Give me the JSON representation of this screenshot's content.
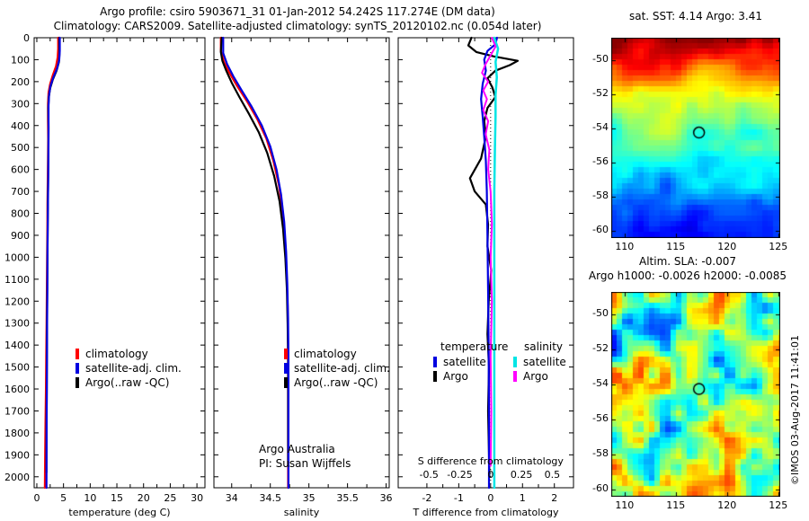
{
  "header": {
    "line1": "Argo profile: csiro 5903671_31 01-Jan-2012 54.242S 117.274E (DM data)",
    "line2": "Climatology: CARS2009. Satellite-adjusted climatology: synTS_20120102.nc (0.054d later)"
  },
  "watermark": "©IMOS 03-Aug-2017 11:41:01",
  "chart_data": [
    {
      "id": "temperature",
      "type": "line",
      "xlabel": "temperature (deg C)",
      "xlim": [
        -0.5,
        31.5
      ],
      "xticks": [
        0,
        5,
        10,
        15,
        20,
        25,
        30
      ],
      "ylim": [
        0,
        2050
      ],
      "yticks": [
        0,
        100,
        200,
        300,
        400,
        500,
        600,
        700,
        800,
        900,
        1000,
        1100,
        1200,
        1300,
        1400,
        1500,
        1600,
        1700,
        1800,
        1900,
        2000
      ],
      "legend": {
        "items": [
          {
            "label": "climatology",
            "color": "#ff0000"
          },
          {
            "label": "satellite-adj. clim.",
            "color": "#0000e0"
          },
          {
            "label": "Argo(..raw -QC)",
            "color": "#000000"
          }
        ]
      },
      "series": [
        {
          "name": "climatology",
          "color": "#ff0000",
          "width": 2.2,
          "points": [
            [
              4.0,
              0
            ],
            [
              4.0,
              50
            ],
            [
              3.9,
              90
            ],
            [
              3.6,
              130
            ],
            [
              3.0,
              170
            ],
            [
              2.5,
              210
            ],
            [
              2.2,
              250
            ],
            [
              2.1,
              300
            ],
            [
              2.1,
              380
            ],
            [
              2.12,
              460
            ],
            [
              2.1,
              550
            ],
            [
              2.05,
              650
            ],
            [
              2.0,
              760
            ],
            [
              1.97,
              880
            ],
            [
              1.93,
              1000
            ],
            [
              1.88,
              1150
            ],
            [
              1.82,
              1300
            ],
            [
              1.76,
              1450
            ],
            [
              1.7,
              1600
            ],
            [
              1.63,
              1750
            ],
            [
              1.56,
              1900
            ],
            [
              1.5,
              2050
            ]
          ]
        },
        {
          "name": "Argo(..raw -QC)",
          "color": "#000000",
          "width": 2.2,
          "points": [
            [
              4.2,
              0
            ],
            [
              4.25,
              70
            ],
            [
              4.15,
              110
            ],
            [
              3.7,
              150
            ],
            [
              3.0,
              190
            ],
            [
              2.5,
              230
            ],
            [
              2.25,
              270
            ],
            [
              2.15,
              320
            ],
            [
              2.2,
              410
            ],
            [
              2.17,
              510
            ],
            [
              2.13,
              630
            ],
            [
              2.08,
              750
            ],
            [
              2.03,
              880
            ],
            [
              1.99,
              1010
            ],
            [
              1.95,
              1160
            ],
            [
              1.91,
              1310
            ],
            [
              1.88,
              1460
            ],
            [
              1.85,
              1610
            ],
            [
              1.83,
              1760
            ],
            [
              1.81,
              1910
            ],
            [
              1.8,
              1980
            ]
          ]
        },
        {
          "name": "satellite-adj. clim.",
          "color": "#0000e0",
          "width": 2.2,
          "points": [
            [
              4.3,
              0
            ],
            [
              4.3,
              60
            ],
            [
              4.2,
              100
            ],
            [
              3.8,
              140
            ],
            [
              3.1,
              180
            ],
            [
              2.55,
              220
            ],
            [
              2.3,
              260
            ],
            [
              2.2,
              310
            ],
            [
              2.2,
              400
            ],
            [
              2.18,
              500
            ],
            [
              2.15,
              620
            ],
            [
              2.1,
              740
            ],
            [
              2.05,
              870
            ],
            [
              2.0,
              1000
            ],
            [
              1.97,
              1150
            ],
            [
              1.93,
              1300
            ],
            [
              1.9,
              1450
            ],
            [
              1.87,
              1600
            ],
            [
              1.84,
              1750
            ],
            [
              1.82,
              1900
            ],
            [
              1.8,
              2050
            ]
          ]
        }
      ]
    },
    {
      "id": "salinity",
      "type": "line",
      "xlabel": "salinity",
      "xlim": [
        33.77,
        36.04
      ],
      "xticks": [
        34,
        34.5,
        35,
        35.5,
        36
      ],
      "ylim": [
        0,
        2050
      ],
      "yticks": [
        0,
        100,
        200,
        300,
        400,
        500,
        600,
        700,
        800,
        900,
        1000,
        1100,
        1200,
        1300,
        1400,
        1500,
        1600,
        1700,
        1800,
        1900,
        2000
      ],
      "annotations": [
        "Argo Australia",
        "PI: Susan Wijffels"
      ],
      "legend": {
        "items": [
          {
            "label": "climatology",
            "color": "#ff0000"
          },
          {
            "label": "satellite-adj. clim.",
            "color": "#0000e0"
          },
          {
            "label": "Argo(..raw -QC)",
            "color": "#000000"
          }
        ]
      },
      "series": [
        {
          "name": "climatology",
          "color": "#ff0000",
          "width": 2.2,
          "points": [
            [
              33.86,
              0
            ],
            [
              33.86,
              60
            ],
            [
              33.9,
              110
            ],
            [
              33.97,
              160
            ],
            [
              34.07,
              220
            ],
            [
              34.2,
              290
            ],
            [
              34.33,
              370
            ],
            [
              34.45,
              460
            ],
            [
              34.54,
              560
            ],
            [
              34.61,
              670
            ],
            [
              34.66,
              790
            ],
            [
              34.69,
              920
            ],
            [
              34.71,
              1060
            ],
            [
              34.725,
              1220
            ],
            [
              34.73,
              1400
            ],
            [
              34.73,
              2050
            ]
          ]
        },
        {
          "name": "Argo(..raw -QC)",
          "color": "#000000",
          "width": 2.2,
          "points": [
            [
              33.87,
              0
            ],
            [
              33.86,
              65
            ],
            [
              33.88,
              105
            ],
            [
              33.93,
              150
            ],
            [
              34.0,
              205
            ],
            [
              34.1,
              270
            ],
            [
              34.22,
              345
            ],
            [
              34.35,
              430
            ],
            [
              34.46,
              525
            ],
            [
              34.55,
              630
            ],
            [
              34.62,
              745
            ],
            [
              34.665,
              870
            ],
            [
              34.695,
              1005
            ],
            [
              34.715,
              1150
            ],
            [
              34.725,
              1305
            ],
            [
              34.73,
              1470
            ],
            [
              34.73,
              1950
            ]
          ]
        },
        {
          "name": "satellite-adj. clim.",
          "color": "#0000e0",
          "width": 2.2,
          "points": [
            [
              33.89,
              0
            ],
            [
              33.89,
              70
            ],
            [
              33.94,
              120
            ],
            [
              34.02,
              175
            ],
            [
              34.13,
              240
            ],
            [
              34.26,
              315
            ],
            [
              34.39,
              400
            ],
            [
              34.5,
              495
            ],
            [
              34.58,
              600
            ],
            [
              34.64,
              715
            ],
            [
              34.68,
              840
            ],
            [
              34.705,
              975
            ],
            [
              34.72,
              1120
            ],
            [
              34.73,
              1280
            ],
            [
              34.735,
              1450
            ],
            [
              34.735,
              2050
            ]
          ]
        }
      ]
    },
    {
      "id": "difference",
      "type": "line",
      "xlabel": "T difference from climatology",
      "xlim": [
        -2.9,
        2.6
      ],
      "xticks": [
        -2,
        -1,
        0,
        1,
        2
      ],
      "ylim": [
        0,
        2050
      ],
      "yticks": [
        0,
        100,
        200,
        300,
        400,
        500,
        600,
        700,
        800,
        900,
        1000,
        1100,
        1200,
        1300,
        1400,
        1500,
        1600,
        1700,
        1800,
        1900,
        2000
      ],
      "zero_line": true,
      "s_axis": {
        "label": "S difference from climatology",
        "ticks": [
          -0.5,
          -0.25,
          0,
          0.25,
          0.5
        ],
        "t_equivalent": 3.87
      },
      "legend": {
        "columns": [
          {
            "header": "temperature",
            "items": [
              {
                "label": "satellite",
                "color": "#0000e0"
              },
              {
                "label": "Argo",
                "color": "#000000"
              }
            ]
          },
          {
            "header": "salinity",
            "items": [
              {
                "label": "satellite",
                "color": "#00e5e5"
              },
              {
                "label": "Argo",
                "color": "#ff00ff"
              }
            ]
          }
        ]
      },
      "series": [
        {
          "name": "Argo temperature",
          "unit": "T",
          "color": "#000000",
          "width": 2.2,
          "points": [
            [
              -0.6,
              0
            ],
            [
              -0.7,
              35
            ],
            [
              -0.45,
              65
            ],
            [
              0.1,
              85
            ],
            [
              0.85,
              105
            ],
            [
              0.6,
              125
            ],
            [
              0.15,
              150
            ],
            [
              -0.1,
              185
            ],
            [
              0.05,
              225
            ],
            [
              0.15,
              270
            ],
            [
              -0.1,
              320
            ],
            [
              -0.2,
              380
            ],
            [
              -0.15,
              450
            ],
            [
              -0.3,
              550
            ],
            [
              -0.65,
              640
            ],
            [
              -0.5,
              700
            ],
            [
              -0.15,
              760
            ],
            [
              -0.08,
              850
            ],
            [
              -0.1,
              950
            ],
            [
              0.02,
              1060
            ],
            [
              -0.06,
              1200
            ],
            [
              -0.1,
              1350
            ],
            [
              -0.05,
              1500
            ],
            [
              -0.08,
              1700
            ],
            [
              -0.05,
              1900
            ],
            [
              -0.04,
              2000
            ]
          ]
        },
        {
          "name": "satellite temperature",
          "unit": "T",
          "color": "#0000e0",
          "width": 2.2,
          "points": [
            [
              0.2,
              0
            ],
            [
              0.15,
              30
            ],
            [
              -0.1,
              60
            ],
            [
              -0.2,
              100
            ],
            [
              -0.15,
              150
            ],
            [
              -0.25,
              210
            ],
            [
              -0.3,
              280
            ],
            [
              -0.25,
              360
            ],
            [
              -0.2,
              450
            ],
            [
              -0.15,
              560
            ],
            [
              -0.12,
              700
            ],
            [
              -0.1,
              900
            ],
            [
              -0.08,
              1150
            ],
            [
              -0.06,
              1450
            ],
            [
              -0.05,
              1750
            ],
            [
              -0.05,
              2050
            ]
          ]
        },
        {
          "name": "satellite salinity",
          "unit": "S",
          "color": "#00e5e5",
          "width": 2.5,
          "points": [
            [
              0.03,
              0
            ],
            [
              0.06,
              50
            ],
            [
              0.04,
              110
            ],
            [
              0.05,
              180
            ],
            [
              0.04,
              260
            ],
            [
              0.04,
              360
            ],
            [
              0.035,
              500
            ],
            [
              0.03,
              700
            ],
            [
              0.03,
              1000
            ],
            [
              0.03,
              1400
            ],
            [
              0.03,
              2050
            ]
          ]
        },
        {
          "name": "Argo salinity",
          "unit": "S",
          "color": "#ff00ff",
          "width": 2.0,
          "points": [
            [
              0.01,
              0
            ],
            [
              0.04,
              40
            ],
            [
              0.0,
              80
            ],
            [
              -0.04,
              120
            ],
            [
              -0.07,
              160
            ],
            [
              -0.02,
              200
            ],
            [
              -0.06,
              240
            ],
            [
              -0.03,
              280
            ],
            [
              -0.06,
              330
            ],
            [
              -0.02,
              380
            ],
            [
              -0.04,
              440
            ],
            [
              -0.01,
              510
            ],
            [
              -0.02,
              600
            ],
            [
              0.0,
              700
            ],
            [
              0.01,
              850
            ],
            [
              0.0,
              1000
            ],
            [
              0.01,
              1200
            ],
            [
              0.0,
              1450
            ],
            [
              0.005,
              1700
            ],
            [
              0.0,
              1950
            ]
          ]
        }
      ]
    },
    {
      "id": "sst_map",
      "type": "heatmap",
      "title": "sat. SST: 4.14 Argo: 3.41",
      "xticks": [
        110,
        115,
        120,
        125
      ],
      "yticks": [
        -50,
        -52,
        -54,
        -56,
        -58,
        -60
      ],
      "lon_range": [
        108.7,
        125.2
      ],
      "lat_range": [
        -48.7,
        -60.4
      ],
      "marker": {
        "lon": 117.27,
        "lat": -54.24
      },
      "palette": "jet",
      "pattern": "warm-north-cold-south",
      "seed": 20127
    },
    {
      "id": "sla_map",
      "type": "heatmap",
      "annotations": [
        "Altim. SLA: -0.007",
        "Argo h1000: -0.0026 h2000: -0.0085"
      ],
      "xticks": [
        110,
        115,
        120,
        125
      ],
      "yticks": [
        -50,
        -52,
        -54,
        -56,
        -58,
        -60
      ],
      "lon_range": [
        108.7,
        125.2
      ],
      "lat_range": [
        -48.7,
        -60.4
      ],
      "marker": {
        "lon": 117.27,
        "lat": -54.24
      },
      "palette": "jet",
      "pattern": "anomaly-blobs",
      "seed": 914
    }
  ]
}
